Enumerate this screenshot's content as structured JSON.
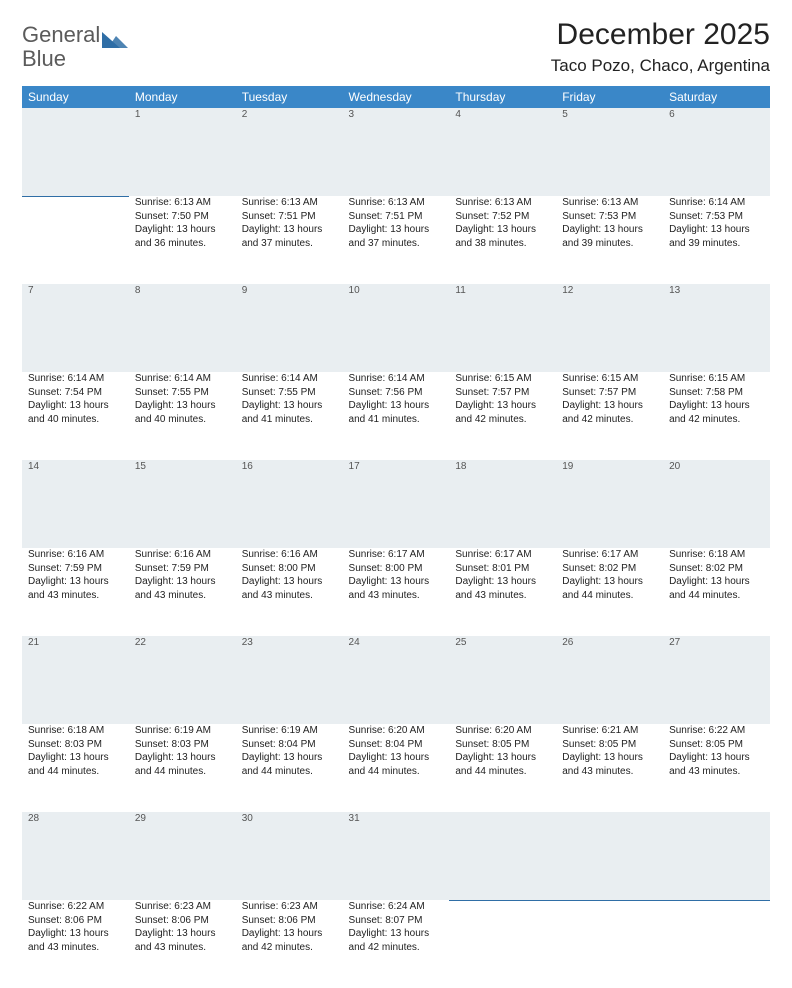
{
  "brand": {
    "line1": "General",
    "line2": "Blue",
    "logo_color": "#2f6ea6"
  },
  "title": {
    "month": "December 2025",
    "location": "Taco Pozo, Chaco, Argentina"
  },
  "styling": {
    "header_bg": "#3a87c8",
    "header_text": "#ffffff",
    "daynum_bg": "#e9eef1",
    "daynum_border": "#2f6ea6",
    "body_text": "#222222",
    "page_bg": "#ffffff",
    "font_family": "Arial",
    "month_fontsize": 30,
    "location_fontsize": 17,
    "weekday_fontsize": 12,
    "cell_fontsize": 10
  },
  "weekdays": [
    "Sunday",
    "Monday",
    "Tuesday",
    "Wednesday",
    "Thursday",
    "Friday",
    "Saturday"
  ],
  "start_offset": 1,
  "days": [
    {
      "n": 1,
      "sunrise": "6:13 AM",
      "sunset": "7:50 PM",
      "daylight": "13 hours and 36 minutes."
    },
    {
      "n": 2,
      "sunrise": "6:13 AM",
      "sunset": "7:51 PM",
      "daylight": "13 hours and 37 minutes."
    },
    {
      "n": 3,
      "sunrise": "6:13 AM",
      "sunset": "7:51 PM",
      "daylight": "13 hours and 37 minutes."
    },
    {
      "n": 4,
      "sunrise": "6:13 AM",
      "sunset": "7:52 PM",
      "daylight": "13 hours and 38 minutes."
    },
    {
      "n": 5,
      "sunrise": "6:13 AM",
      "sunset": "7:53 PM",
      "daylight": "13 hours and 39 minutes."
    },
    {
      "n": 6,
      "sunrise": "6:14 AM",
      "sunset": "7:53 PM",
      "daylight": "13 hours and 39 minutes."
    },
    {
      "n": 7,
      "sunrise": "6:14 AM",
      "sunset": "7:54 PM",
      "daylight": "13 hours and 40 minutes."
    },
    {
      "n": 8,
      "sunrise": "6:14 AM",
      "sunset": "7:55 PM",
      "daylight": "13 hours and 40 minutes."
    },
    {
      "n": 9,
      "sunrise": "6:14 AM",
      "sunset": "7:55 PM",
      "daylight": "13 hours and 41 minutes."
    },
    {
      "n": 10,
      "sunrise": "6:14 AM",
      "sunset": "7:56 PM",
      "daylight": "13 hours and 41 minutes."
    },
    {
      "n": 11,
      "sunrise": "6:15 AM",
      "sunset": "7:57 PM",
      "daylight": "13 hours and 42 minutes."
    },
    {
      "n": 12,
      "sunrise": "6:15 AM",
      "sunset": "7:57 PM",
      "daylight": "13 hours and 42 minutes."
    },
    {
      "n": 13,
      "sunrise": "6:15 AM",
      "sunset": "7:58 PM",
      "daylight": "13 hours and 42 minutes."
    },
    {
      "n": 14,
      "sunrise": "6:16 AM",
      "sunset": "7:59 PM",
      "daylight": "13 hours and 43 minutes."
    },
    {
      "n": 15,
      "sunrise": "6:16 AM",
      "sunset": "7:59 PM",
      "daylight": "13 hours and 43 minutes."
    },
    {
      "n": 16,
      "sunrise": "6:16 AM",
      "sunset": "8:00 PM",
      "daylight": "13 hours and 43 minutes."
    },
    {
      "n": 17,
      "sunrise": "6:17 AM",
      "sunset": "8:00 PM",
      "daylight": "13 hours and 43 minutes."
    },
    {
      "n": 18,
      "sunrise": "6:17 AM",
      "sunset": "8:01 PM",
      "daylight": "13 hours and 43 minutes."
    },
    {
      "n": 19,
      "sunrise": "6:17 AM",
      "sunset": "8:02 PM",
      "daylight": "13 hours and 44 minutes."
    },
    {
      "n": 20,
      "sunrise": "6:18 AM",
      "sunset": "8:02 PM",
      "daylight": "13 hours and 44 minutes."
    },
    {
      "n": 21,
      "sunrise": "6:18 AM",
      "sunset": "8:03 PM",
      "daylight": "13 hours and 44 minutes."
    },
    {
      "n": 22,
      "sunrise": "6:19 AM",
      "sunset": "8:03 PM",
      "daylight": "13 hours and 44 minutes."
    },
    {
      "n": 23,
      "sunrise": "6:19 AM",
      "sunset": "8:04 PM",
      "daylight": "13 hours and 44 minutes."
    },
    {
      "n": 24,
      "sunrise": "6:20 AM",
      "sunset": "8:04 PM",
      "daylight": "13 hours and 44 minutes."
    },
    {
      "n": 25,
      "sunrise": "6:20 AM",
      "sunset": "8:05 PM",
      "daylight": "13 hours and 44 minutes."
    },
    {
      "n": 26,
      "sunrise": "6:21 AM",
      "sunset": "8:05 PM",
      "daylight": "13 hours and 43 minutes."
    },
    {
      "n": 27,
      "sunrise": "6:22 AM",
      "sunset": "8:05 PM",
      "daylight": "13 hours and 43 minutes."
    },
    {
      "n": 28,
      "sunrise": "6:22 AM",
      "sunset": "8:06 PM",
      "daylight": "13 hours and 43 minutes."
    },
    {
      "n": 29,
      "sunrise": "6:23 AM",
      "sunset": "8:06 PM",
      "daylight": "13 hours and 43 minutes."
    },
    {
      "n": 30,
      "sunrise": "6:23 AM",
      "sunset": "8:06 PM",
      "daylight": "13 hours and 42 minutes."
    },
    {
      "n": 31,
      "sunrise": "6:24 AM",
      "sunset": "8:07 PM",
      "daylight": "13 hours and 42 minutes."
    }
  ],
  "labels": {
    "sunrise": "Sunrise:",
    "sunset": "Sunset:",
    "daylight": "Daylight:"
  }
}
